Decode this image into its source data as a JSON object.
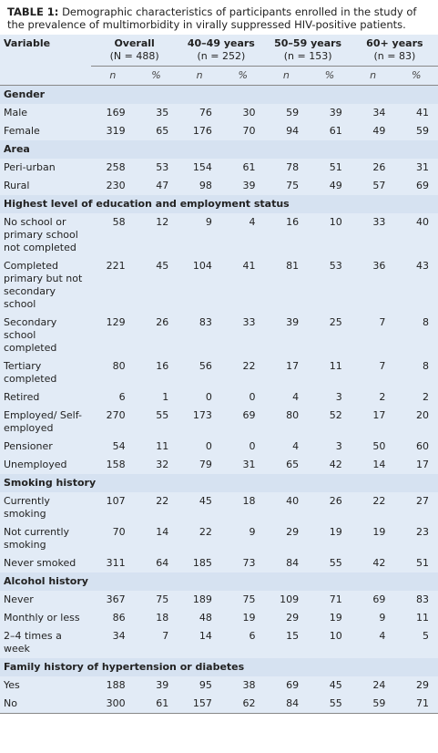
{
  "title": {
    "label": "TABLE 1:",
    "text": "Demographic characteristics of participants enrolled in the study of the prevalence of multimorbidity in virally suppressed HIV-positive patients."
  },
  "header": {
    "variable": "Variable",
    "groups": [
      {
        "name": "Overall",
        "n": "(N = 488)"
      },
      {
        "name": "40–49 years",
        "n": "(n = 252)"
      },
      {
        "name": "50–59 years",
        "n": "(n = 153)"
      },
      {
        "name": "60+ years",
        "n": "(n = 83)"
      }
    ],
    "subheaders": [
      "n",
      "%"
    ]
  },
  "sections": [
    {
      "title": "Gender",
      "rows": [
        {
          "label": "Male",
          "values": [
            169,
            35,
            76,
            30,
            59,
            39,
            34,
            41
          ]
        },
        {
          "label": "Female",
          "values": [
            319,
            65,
            176,
            70,
            94,
            61,
            49,
            59
          ]
        }
      ]
    },
    {
      "title": "Area",
      "rows": [
        {
          "label": "Peri-urban",
          "values": [
            258,
            53,
            154,
            61,
            78,
            51,
            26,
            31
          ]
        },
        {
          "label": "Rural",
          "values": [
            230,
            47,
            98,
            39,
            75,
            49,
            57,
            69
          ]
        }
      ]
    },
    {
      "title": "Highest level of education and employment status",
      "rows": [
        {
          "label": "No school or primary school not completed",
          "values": [
            58,
            12,
            9,
            4,
            16,
            10,
            33,
            40
          ]
        },
        {
          "label": "Completed primary but not secondary school",
          "values": [
            221,
            45,
            104,
            41,
            81,
            53,
            36,
            43
          ]
        },
        {
          "label": "Secondary school completed",
          "values": [
            129,
            26,
            83,
            33,
            39,
            25,
            7,
            8
          ]
        },
        {
          "label": "Tertiary completed",
          "values": [
            80,
            16,
            56,
            22,
            17,
            11,
            7,
            8
          ]
        },
        {
          "label": "Retired",
          "values": [
            6,
            1,
            0,
            0,
            4,
            3,
            2,
            2
          ]
        },
        {
          "label": "Employed/ Self-employed",
          "values": [
            270,
            55,
            173,
            69,
            80,
            52,
            17,
            20
          ]
        },
        {
          "label": "Pensioner",
          "values": [
            54,
            11,
            0,
            0,
            4,
            3,
            50,
            60
          ]
        },
        {
          "label": "Unemployed",
          "values": [
            158,
            32,
            79,
            31,
            65,
            42,
            14,
            17
          ]
        }
      ]
    },
    {
      "title": "Smoking history",
      "rows": [
        {
          "label": "Currently smoking",
          "values": [
            107,
            22,
            45,
            18,
            40,
            26,
            22,
            27
          ]
        },
        {
          "label": "Not currently smoking",
          "values": [
            70,
            14,
            22,
            9,
            29,
            19,
            19,
            23
          ]
        },
        {
          "label": "Never smoked",
          "values": [
            311,
            64,
            185,
            73,
            84,
            55,
            42,
            51
          ]
        }
      ]
    },
    {
      "title": "Alcohol history",
      "rows": [
        {
          "label": "Never",
          "values": [
            367,
            75,
            189,
            75,
            109,
            71,
            69,
            83
          ]
        },
        {
          "label": "Monthly or less",
          "values": [
            86,
            18,
            48,
            19,
            29,
            19,
            9,
            11
          ]
        },
        {
          "label": "2–4 times a week",
          "values": [
            34,
            7,
            14,
            6,
            15,
            10,
            4,
            5
          ]
        }
      ]
    },
    {
      "title": "Family history of hypertension or diabetes",
      "rows": [
        {
          "label": "Yes",
          "values": [
            188,
            39,
            95,
            38,
            69,
            45,
            24,
            29
          ]
        },
        {
          "label": "No",
          "values": [
            300,
            61,
            157,
            62,
            84,
            55,
            59,
            71
          ]
        }
      ]
    }
  ]
}
